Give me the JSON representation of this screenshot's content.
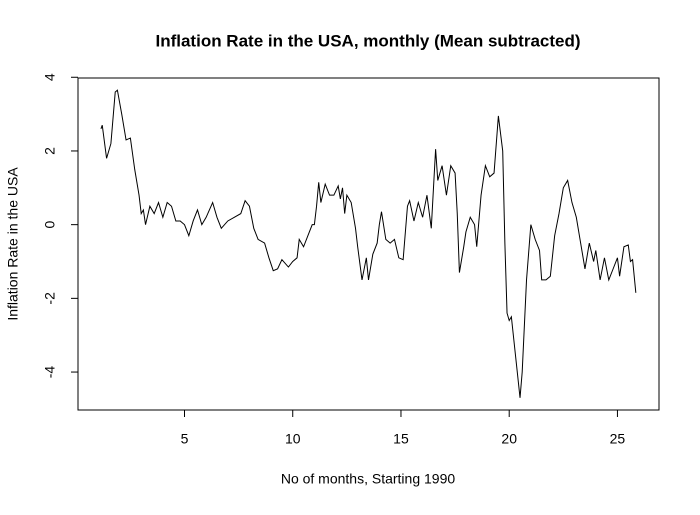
{
  "chart_data": {
    "type": "line",
    "title": "Inflation Rate in the USA, monthly (Mean subtracted)",
    "x_label": "No of months, Starting 1990",
    "y_label": "Inflation Rate in the USA",
    "color": "#000000",
    "xlim": [
      0.08,
      26.92
    ],
    "ylim": [
      -5.03,
      3.98
    ],
    "xticks": [
      5,
      10,
      15,
      20,
      25
    ],
    "yticks": [
      -4,
      -2,
      0,
      2,
      4
    ],
    "x": [
      1.14,
      1.2,
      1.4,
      1.6,
      1.8,
      1.9,
      2.1,
      2.3,
      2.5,
      2.7,
      2.9,
      3.0,
      3.1,
      3.2,
      3.4,
      3.6,
      3.8,
      4.0,
      4.2,
      4.4,
      4.6,
      4.8,
      5.0,
      5.2,
      5.4,
      5.6,
      5.8,
      6.0,
      6.3,
      6.5,
      6.7,
      7.0,
      7.3,
      7.6,
      7.8,
      8.0,
      8.2,
      8.4,
      8.7,
      8.9,
      9.1,
      9.3,
      9.5,
      9.8,
      10.0,
      10.2,
      10.3,
      10.5,
      10.7,
      10.9,
      11.0,
      11.1,
      11.2,
      11.3,
      11.5,
      11.7,
      11.9,
      12.1,
      12.2,
      12.3,
      12.4,
      12.5,
      12.7,
      12.9,
      13.0,
      13.2,
      13.4,
      13.5,
      13.7,
      13.9,
      14.0,
      14.1,
      14.3,
      14.5,
      14.7,
      14.9,
      15.1,
      15.3,
      15.4,
      15.6,
      15.8,
      16.0,
      16.2,
      16.4,
      16.6,
      16.7,
      16.9,
      17.1,
      17.3,
      17.5,
      17.6,
      17.7,
      17.9,
      18.0,
      18.2,
      18.4,
      18.5,
      18.7,
      18.9,
      19.1,
      19.3,
      19.5,
      19.7,
      19.8,
      19.9,
      20.0,
      20.1,
      20.3,
      20.5,
      20.6,
      20.8,
      21.0,
      21.2,
      21.4,
      21.5,
      21.7,
      21.9,
      22.1,
      22.3,
      22.5,
      22.7,
      22.9,
      23.1,
      23.3,
      23.5,
      23.7,
      23.9,
      24.0,
      24.2,
      24.4,
      24.6,
      24.8,
      25.0,
      25.1,
      25.3,
      25.5,
      25.6,
      25.7,
      25.85
    ],
    "values": [
      2.6,
      2.7,
      1.8,
      2.2,
      3.6,
      3.65,
      3.0,
      2.3,
      2.35,
      1.5,
      0.8,
      0.3,
      0.4,
      0.0,
      0.5,
      0.3,
      0.6,
      0.2,
      0.6,
      0.5,
      0.1,
      0.1,
      0.0,
      -0.3,
      0.1,
      0.4,
      0.0,
      0.2,
      0.6,
      0.2,
      -0.1,
      0.1,
      0.2,
      0.3,
      0.65,
      0.5,
      -0.1,
      -0.4,
      -0.5,
      -0.9,
      -1.25,
      -1.2,
      -0.95,
      -1.15,
      -1.0,
      -0.9,
      -0.4,
      -0.6,
      -0.3,
      0.0,
      0.0,
      0.5,
      1.15,
      0.6,
      1.1,
      0.8,
      0.8,
      1.05,
      0.7,
      1.0,
      0.3,
      0.8,
      0.6,
      -0.1,
      -0.6,
      -1.5,
      -0.9,
      -1.5,
      -0.8,
      -0.5,
      0.0,
      0.35,
      -0.4,
      -0.5,
      -0.4,
      -0.9,
      -0.95,
      0.5,
      0.65,
      0.1,
      0.6,
      0.2,
      0.8,
      -0.1,
      2.05,
      1.2,
      1.6,
      0.8,
      1.6,
      1.4,
      0.3,
      -1.3,
      -0.6,
      -0.2,
      0.2,
      0.0,
      -0.6,
      0.8,
      1.6,
      1.3,
      1.4,
      2.95,
      2.0,
      -0.5,
      -2.4,
      -2.6,
      -2.5,
      -3.6,
      -4.7,
      -4.0,
      -1.5,
      0.0,
      -0.4,
      -0.7,
      -1.5,
      -1.5,
      -1.4,
      -0.3,
      0.3,
      1.0,
      1.2,
      0.6,
      0.2,
      -0.5,
      -1.2,
      -0.5,
      -1.0,
      -0.7,
      -1.5,
      -0.9,
      -1.5,
      -1.2,
      -0.9,
      -1.4,
      -0.6,
      -0.55,
      -1.0,
      -0.95,
      -1.85
    ]
  }
}
